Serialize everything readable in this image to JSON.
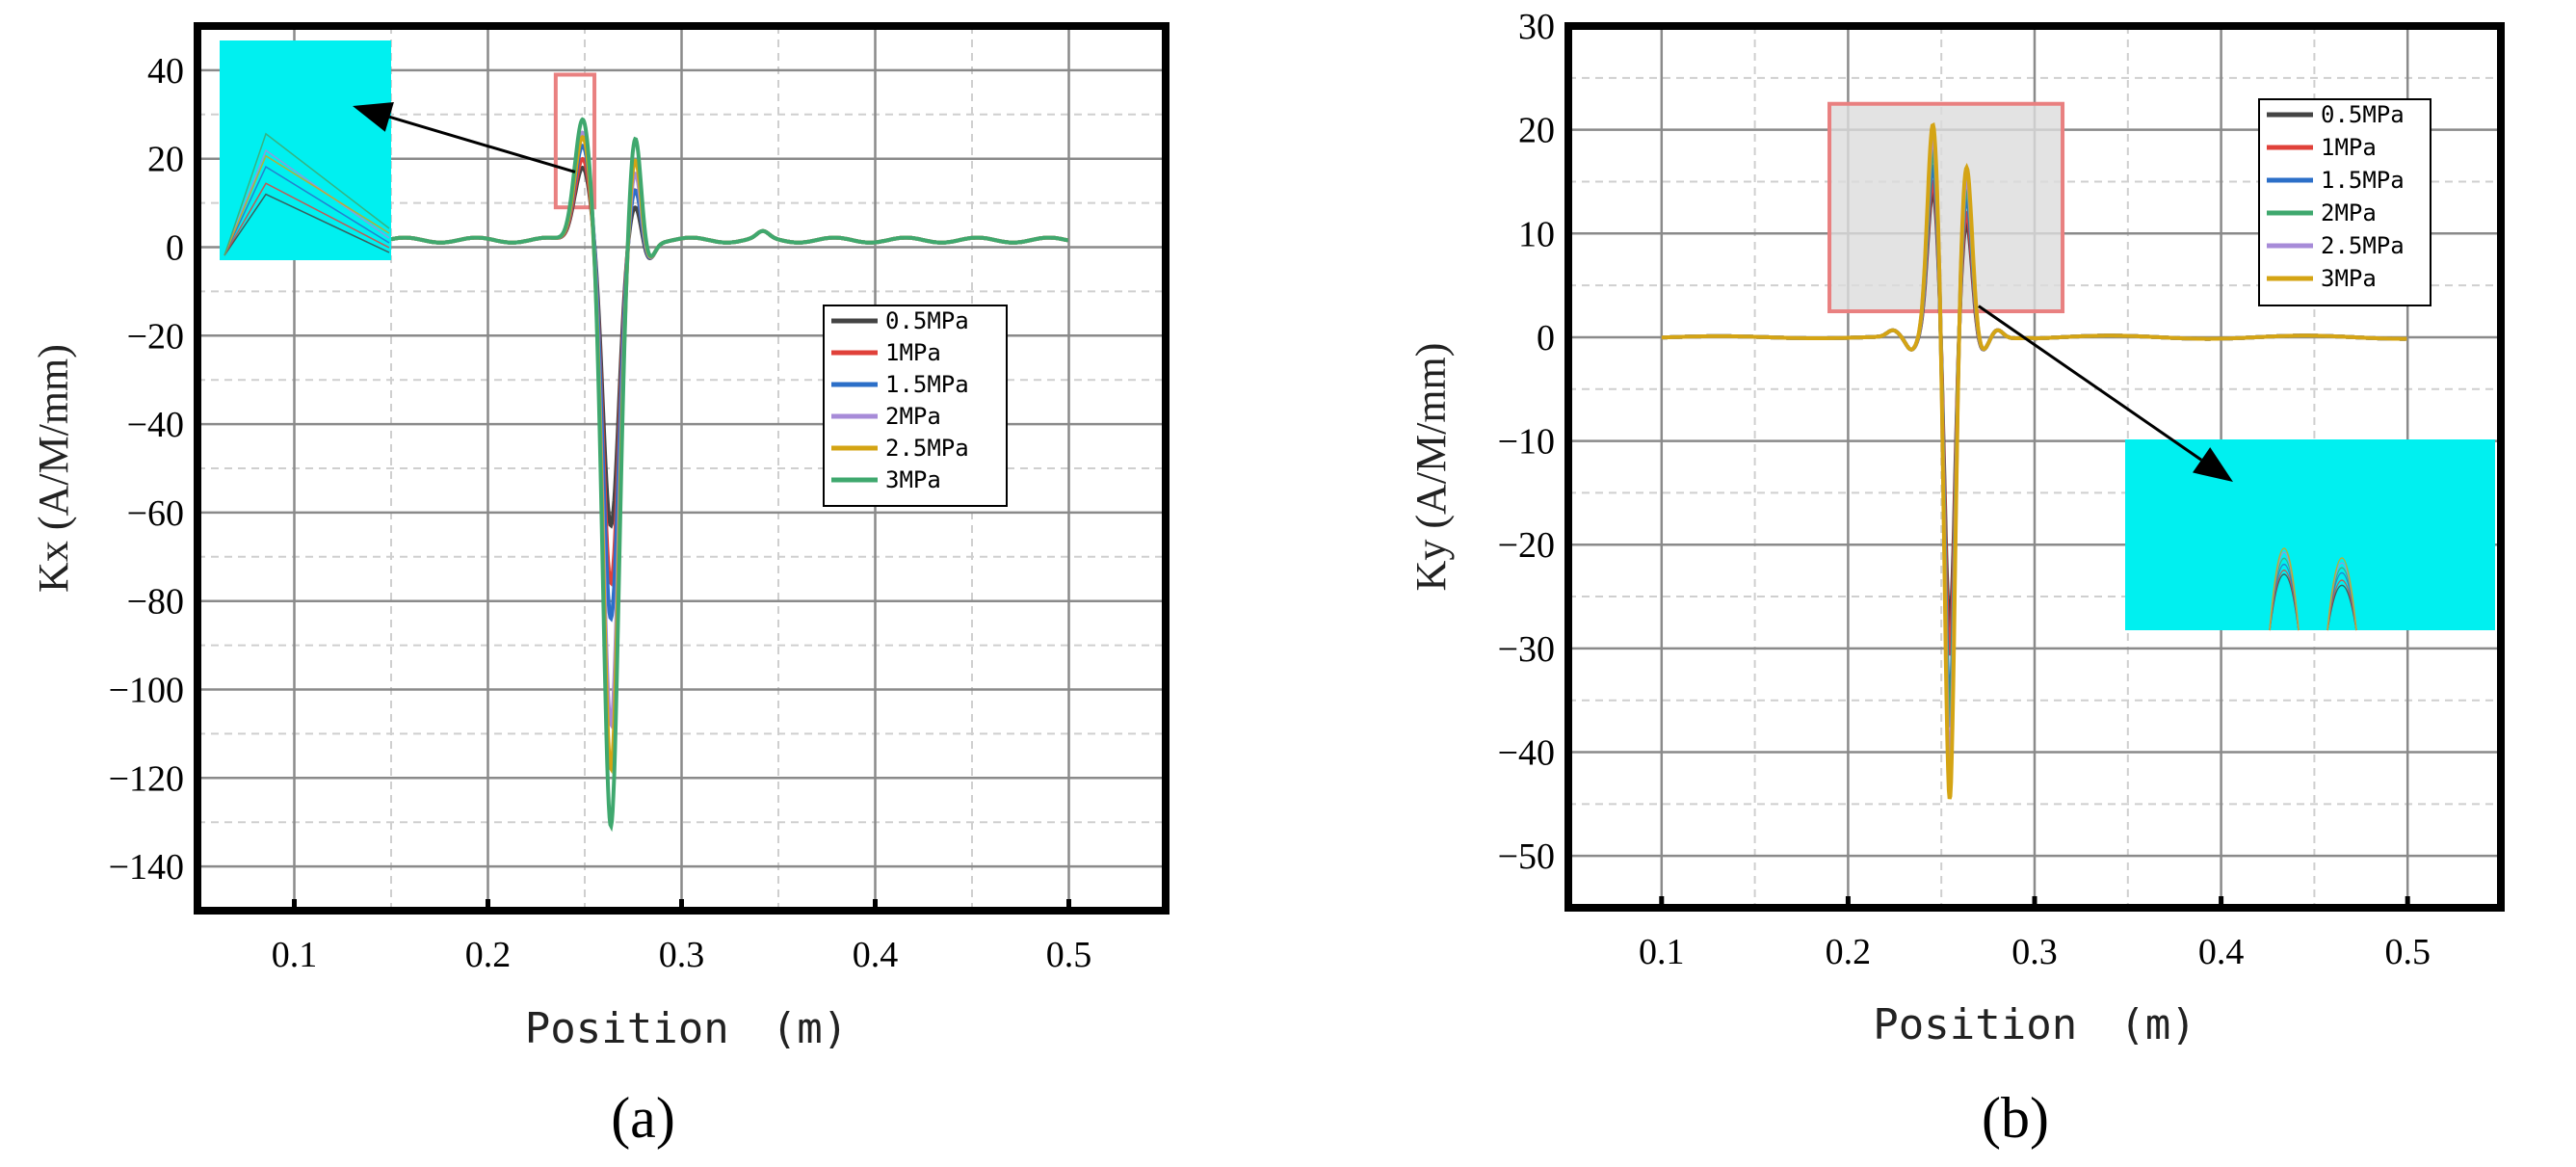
{
  "chart_data": [
    {
      "panel_label": "(a)",
      "type": "line",
      "xlabel": "Position　(m)",
      "ylabel": "Kx (A/M/mm)",
      "xlim": [
        0.05,
        0.55
      ],
      "ylim": [
        -150,
        50
      ],
      "xticks": [
        0.1,
        0.2,
        0.3,
        0.4,
        0.5
      ],
      "yticks": [
        40,
        20,
        0,
        -20,
        -40,
        -60,
        -80,
        -100,
        -120,
        -140
      ],
      "grid": true,
      "legend_position": "center-right",
      "legend_entries": [
        "0.5MPa",
        "1MPa",
        "1.5MPa",
        "2MPa",
        "2.5MPa",
        "3MPa"
      ],
      "series": [
        {
          "name": "0.5MPa",
          "color": "#444444",
          "peak_pre": 17,
          "min": -65,
          "peak_post": 8
        },
        {
          "name": "1MPa",
          "color": "#e0413a",
          "peak_pre": 19,
          "min": -78,
          "peak_post": 12
        },
        {
          "name": "1.5MPa",
          "color": "#2c6fc8",
          "peak_pre": 22,
          "min": -86,
          "peak_post": 12
        },
        {
          "name": "2MPa",
          "color": "#a78bd8",
          "peak_pre": 25,
          "min": -110,
          "peak_post": 16
        },
        {
          "name": "2.5MPa",
          "color": "#d4a414",
          "peak_pre": 24,
          "min": -120,
          "peak_post": 19
        },
        {
          "name": "3MPa",
          "color": "#3fa86e",
          "peak_pre": 28,
          "min": -133,
          "peak_post": 24
        }
      ],
      "zoom_region": {
        "x": [
          0.235,
          0.255
        ],
        "y": [
          9,
          39
        ]
      },
      "inset_color": "#00f0f0"
    },
    {
      "panel_label": "(b)",
      "type": "line",
      "xlabel": "Position　(m)",
      "ylabel": "Ky (A/M/mm)",
      "xlim": [
        0.05,
        0.55
      ],
      "ylim": [
        -55,
        30
      ],
      "xticks": [
        0.1,
        0.2,
        0.3,
        0.4,
        0.5
      ],
      "yticks": [
        30,
        20,
        10,
        0,
        -10,
        -20,
        -30,
        -40,
        -50
      ],
      "grid": true,
      "legend_position": "top-right",
      "legend_entries": [
        "0.5MPa",
        "1MPa",
        "1.5MPa",
        "2MPa",
        "2.5MPa",
        "3MPa"
      ],
      "series": [
        {
          "name": "0.5MPa",
          "color": "#444444",
          "peak1": 14,
          "min": -28,
          "peak2": 11
        },
        {
          "name": "1MPa",
          "color": "#e0413a",
          "peak1": 15,
          "min": -31,
          "peak2": 12
        },
        {
          "name": "1.5MPa",
          "color": "#2c6fc8",
          "peak1": 16.5,
          "min": -36,
          "peak2": 13.5
        },
        {
          "name": "2MPa",
          "color": "#3fa86e",
          "peak1": 18,
          "min": -38,
          "peak2": 14.5
        },
        {
          "name": "2.5MPa",
          "color": "#a78bd8",
          "peak1": 19.5,
          "min": -42,
          "peak2": 15.5
        },
        {
          "name": "3MPa",
          "color": "#d4a414",
          "peak1": 20.5,
          "min": -45,
          "peak2": 16.5
        }
      ],
      "zoom_region": {
        "x": [
          0.19,
          0.315
        ],
        "y": [
          2.5,
          22.5
        ]
      },
      "inset_color": "#00f0f0"
    }
  ]
}
